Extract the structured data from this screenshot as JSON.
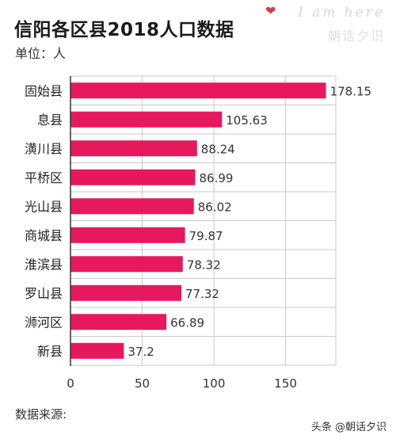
{
  "header": {
    "title": "信阳各区县2018人口数据",
    "unit": "单位：人"
  },
  "watermark": {
    "heart": "❤",
    "top_text": "I am here",
    "sub_text": "朝话夕识"
  },
  "footer": {
    "source_label": "数据来源:",
    "credit": "头条 @朝话夕识"
  },
  "colors": {
    "bar": "#e8185f",
    "grid": "#c8c8c8",
    "axis": "#333333"
  },
  "chart_data": {
    "type": "bar",
    "orientation": "horizontal",
    "title": "信阳各区县2018人口数据",
    "xlabel": "",
    "ylabel": "",
    "categories": [
      "固始县",
      "息县",
      "潢川县",
      "平桥区",
      "光山县",
      "商城县",
      "淮滨县",
      "罗山县",
      "浉河区",
      "新县"
    ],
    "values": [
      178.15,
      105.63,
      88.24,
      86.99,
      86.02,
      79.87,
      78.32,
      77.32,
      66.89,
      37.2
    ],
    "value_labels": [
      "178.15",
      "105.63",
      "88.24",
      "86.99",
      "86.02",
      "79.87",
      "78.32",
      "77.32",
      "66.89",
      "37.2"
    ],
    "xlim": [
      0,
      185
    ],
    "xticks": [
      0,
      50,
      100,
      150
    ],
    "grid": true
  }
}
